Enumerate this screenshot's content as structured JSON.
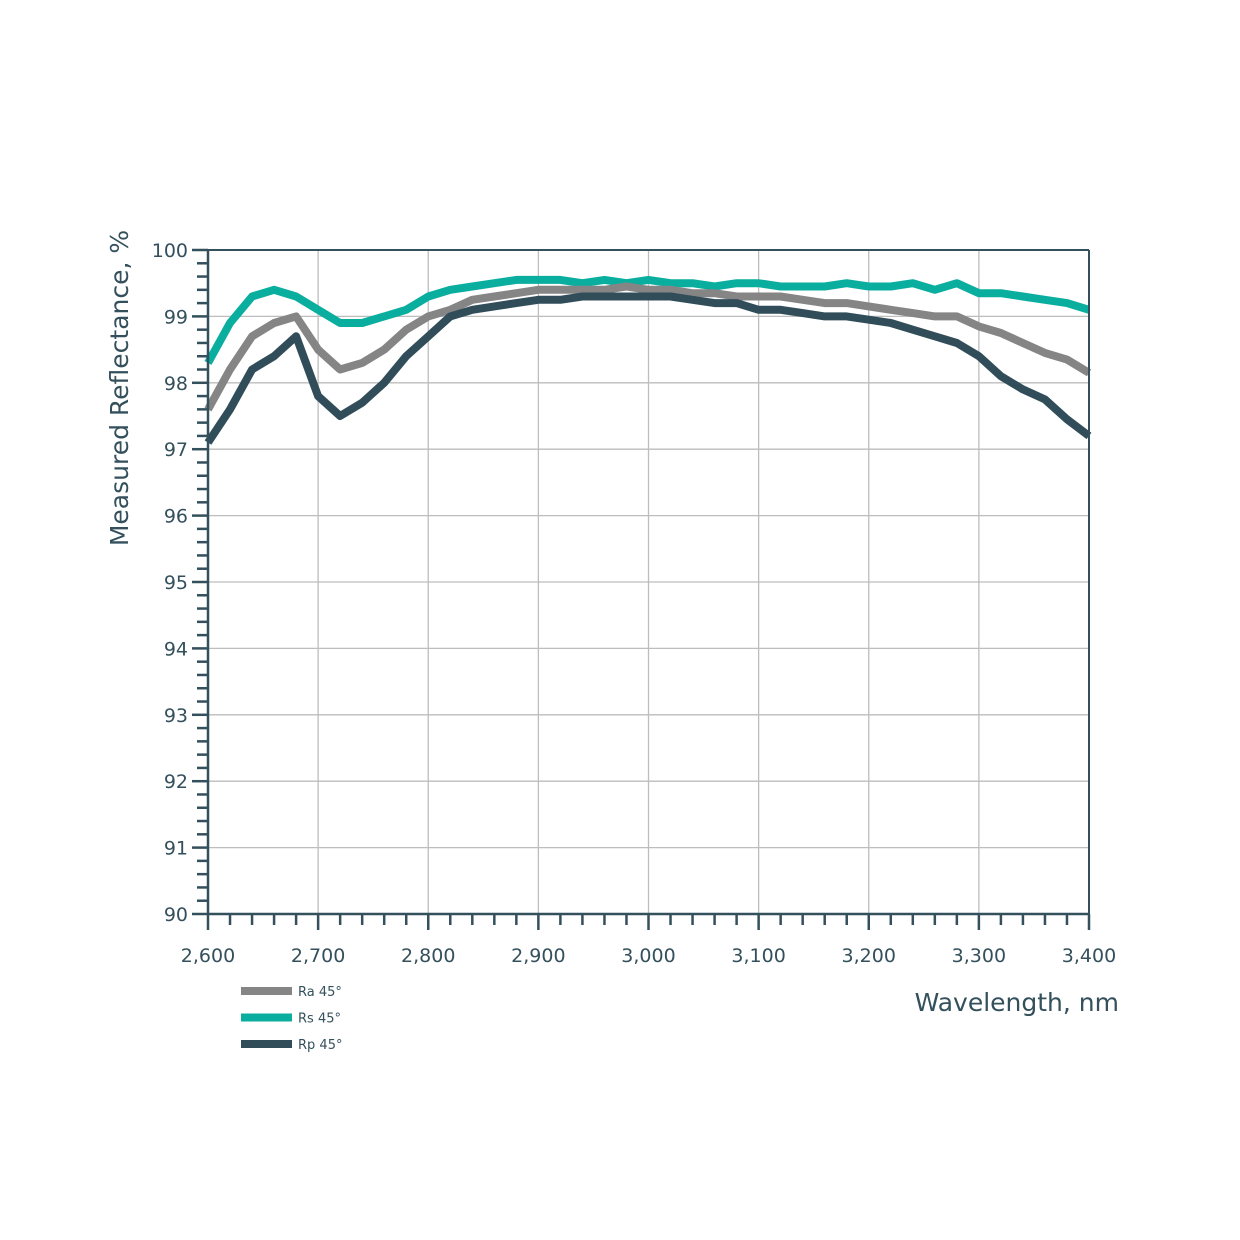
{
  "chart_data": {
    "type": "line",
    "title": "",
    "xlabel": "Wavelength, nm",
    "ylabel": "Measured Reflectance, %",
    "xlim": [
      2600,
      3400
    ],
    "ylim": [
      90,
      100
    ],
    "grid": true,
    "legend_position": "bottom-left",
    "x_tick_labels": [
      "2,600",
      "2,700",
      "2,800",
      "2,900",
      "3,000",
      "3,100",
      "3,200",
      "3,300",
      "3,400"
    ],
    "x_ticks": [
      2600,
      2700,
      2800,
      2900,
      3000,
      3100,
      3200,
      3300,
      3400
    ],
    "y_tick_labels": [
      "90",
      "91",
      "92",
      "93",
      "94",
      "95",
      "96",
      "97",
      "98",
      "99",
      "100"
    ],
    "y_ticks": [
      90,
      91,
      92,
      93,
      94,
      95,
      96,
      97,
      98,
      99,
      100
    ],
    "x": [
      2600,
      2620,
      2640,
      2660,
      2680,
      2700,
      2720,
      2740,
      2760,
      2780,
      2800,
      2820,
      2840,
      2860,
      2880,
      2900,
      2920,
      2940,
      2960,
      2980,
      3000,
      3020,
      3040,
      3060,
      3080,
      3100,
      3120,
      3140,
      3160,
      3180,
      3200,
      3220,
      3240,
      3260,
      3280,
      3300,
      3320,
      3340,
      3360,
      3380,
      3400
    ],
    "series": [
      {
        "name": "Rs 45°",
        "color": "#0aae9f",
        "values": [
          98.3,
          98.9,
          99.3,
          99.4,
          99.3,
          99.1,
          98.9,
          98.9,
          99.0,
          99.1,
          99.3,
          99.4,
          99.45,
          99.5,
          99.55,
          99.55,
          99.55,
          99.5,
          99.55,
          99.5,
          99.55,
          99.5,
          99.5,
          99.45,
          99.5,
          99.5,
          99.45,
          99.45,
          99.45,
          99.5,
          99.45,
          99.45,
          99.5,
          99.4,
          99.5,
          99.35,
          99.35,
          99.3,
          99.25,
          99.2,
          99.1
        ]
      },
      {
        "name": "Ra 45°",
        "color": "#858585",
        "values": [
          97.6,
          98.2,
          98.7,
          98.9,
          99.0,
          98.5,
          98.2,
          98.3,
          98.5,
          98.8,
          99.0,
          99.1,
          99.25,
          99.3,
          99.35,
          99.4,
          99.4,
          99.4,
          99.4,
          99.45,
          99.4,
          99.4,
          99.35,
          99.35,
          99.3,
          99.3,
          99.3,
          99.25,
          99.2,
          99.2,
          99.15,
          99.1,
          99.05,
          99.0,
          99.0,
          98.85,
          98.75,
          98.6,
          98.45,
          98.35,
          98.15
        ]
      },
      {
        "name": "Rp 45°",
        "color": "#324d5a",
        "values": [
          97.1,
          97.6,
          98.2,
          98.4,
          98.7,
          97.8,
          97.5,
          97.7,
          98.0,
          98.4,
          98.7,
          99.0,
          99.1,
          99.15,
          99.2,
          99.25,
          99.25,
          99.3,
          99.3,
          99.3,
          99.3,
          99.3,
          99.25,
          99.2,
          99.2,
          99.1,
          99.1,
          99.05,
          99.0,
          99.0,
          98.95,
          98.9,
          98.8,
          98.7,
          98.6,
          98.4,
          98.1,
          97.9,
          97.75,
          97.45,
          97.2
        ]
      }
    ],
    "legend_order": [
      "Ra 45°",
      "Rs 45°",
      "Rp 45°"
    ]
  }
}
